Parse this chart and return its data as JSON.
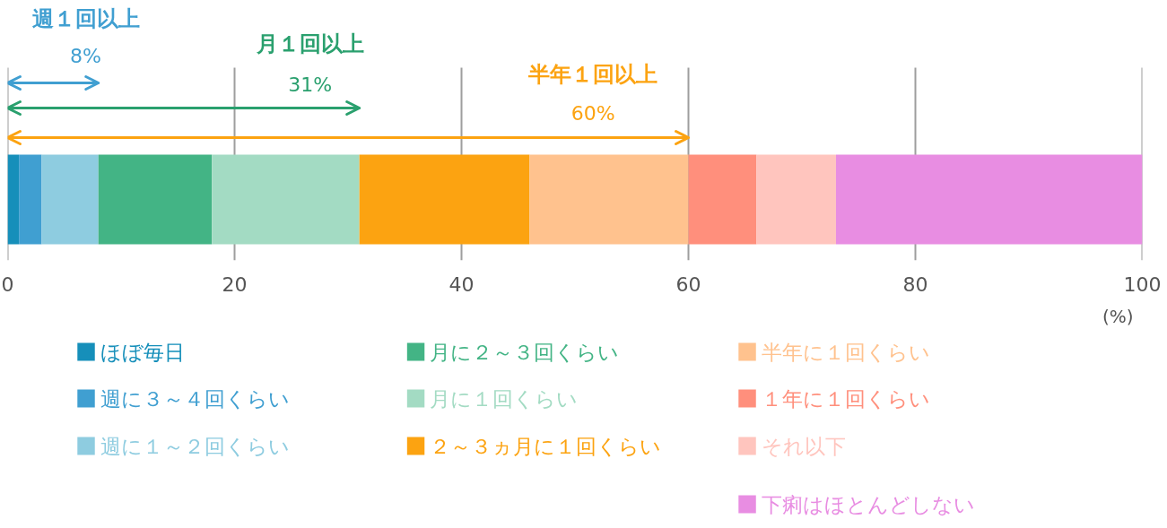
{
  "chart_data": {
    "type": "bar",
    "orientation": "horizontal",
    "stacked": true,
    "categories": [
      null
    ],
    "series": [
      {
        "name": "ほぼ毎日",
        "color": "#168fba",
        "values": [
          1
        ]
      },
      {
        "name": "週に３～４回くらい",
        "color": "#409fd1",
        "values": [
          2
        ]
      },
      {
        "name": "週に１～２回くらい",
        "color": "#8ecce0",
        "values": [
          5
        ]
      },
      {
        "name": "月に２～３回くらい",
        "color": "#43b485",
        "values": [
          10
        ]
      },
      {
        "name": "月に１回くらい",
        "color": "#a3dbc3",
        "values": [
          13
        ]
      },
      {
        "name": "２～３ヵ月に１回くらい",
        "color": "#fca311",
        "values": [
          15
        ]
      },
      {
        "name": "半年に１回くらい",
        "color": "#ffc28e",
        "values": [
          14
        ]
      },
      {
        "name": "１年に１回くらい",
        "color": "#ff8f7c",
        "values": [
          6
        ]
      },
      {
        "name": "それ以下",
        "color": "#ffc5be",
        "values": [
          7
        ]
      },
      {
        "name": "下痢はほとんどしない",
        "color": "#e88de2",
        "values": [
          27
        ]
      }
    ],
    "xlim": [
      0,
      100
    ],
    "xticks": [
      0,
      20,
      40,
      60,
      80,
      100
    ],
    "xlabel": "(%)",
    "grid": "x",
    "legend": "bottom",
    "annotations": [
      "週１回以上",
      "8%",
      "月１回以上",
      "31%",
      "半年１回以上",
      "60%"
    ]
  }
}
